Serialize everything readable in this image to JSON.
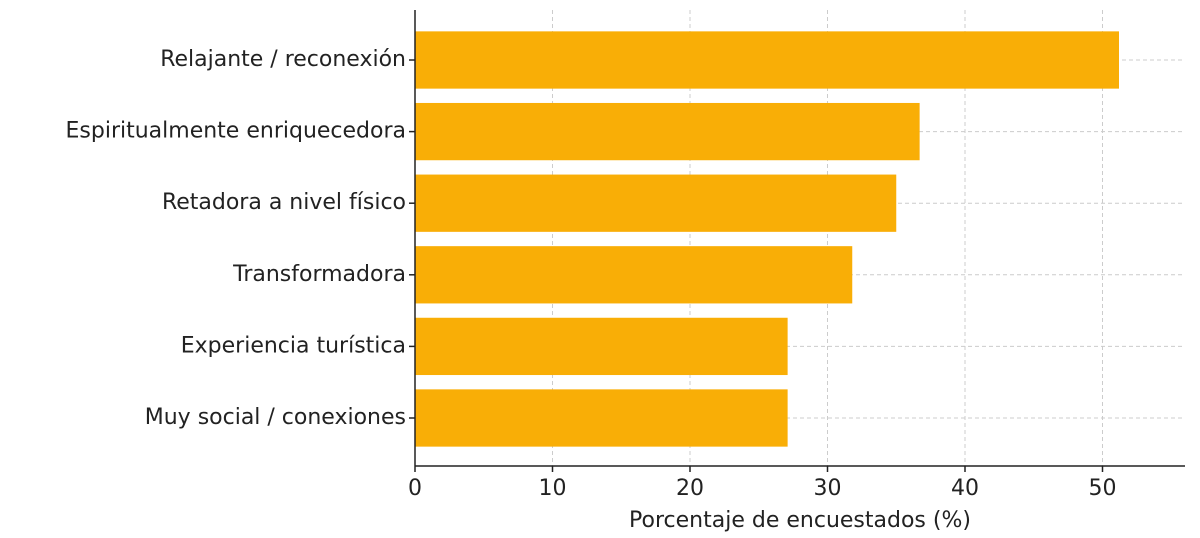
{
  "chart_data": {
    "type": "barh",
    "categories": [
      "Relajante / reconexión",
      "Espiritualmente enriquecedora",
      "Retadora a nivel físico",
      "Transformadora",
      "Experiencia turística",
      "Muy social / conexiones"
    ],
    "values": [
      51.2,
      36.7,
      35.0,
      31.8,
      27.1,
      27.1
    ],
    "color": "#f9ae06",
    "xlabel": "Porcentaje de encuestados (%)",
    "xlim": [
      0,
      56
    ],
    "xticks": [
      0,
      10,
      20,
      30,
      40,
      50
    ],
    "grid": true
  }
}
